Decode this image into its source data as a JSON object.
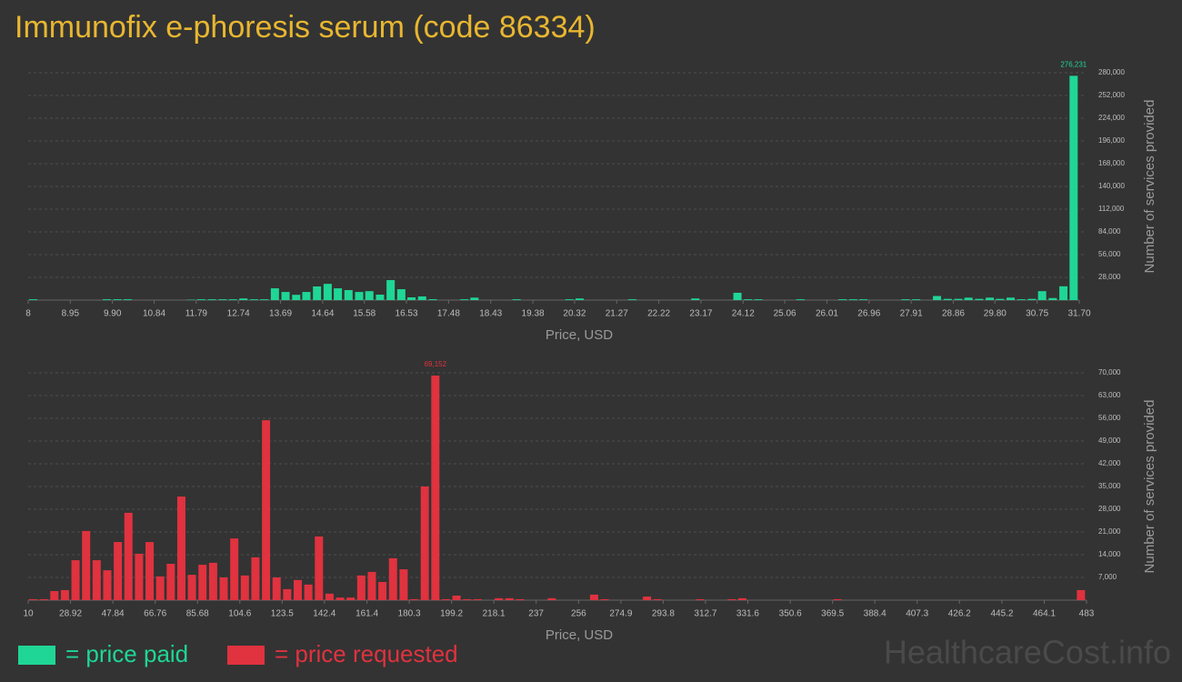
{
  "title": "Immunofix e-phoresis serum (code 86334)",
  "watermark": "HealthcareCost.info",
  "chart_data": [
    {
      "type": "bar",
      "x_label": "Price, USD",
      "y_label": "Number of services provided",
      "grid": true,
      "xlim": [
        8,
        31.7
      ],
      "xticks": [
        8,
        8.95,
        {
          "value": 9.9,
          "label": "9.90"
        },
        10.84,
        11.79,
        12.74,
        13.69,
        14.64,
        15.58,
        16.53,
        17.48,
        18.43,
        19.38,
        20.32,
        21.27,
        22.22,
        23.17,
        24.12,
        25.06,
        26.01,
        26.96,
        27.91,
        28.86,
        {
          "value": 29.8,
          "label": "29.80"
        },
        30.75,
        {
          "value": 31.7,
          "label": "31.70"
        }
      ],
      "ylim": [
        0,
        280000
      ],
      "yticks": [
        {
          "value": 28000,
          "label": "28,000"
        },
        {
          "value": 56000,
          "label": "56,000"
        },
        {
          "value": 84000,
          "label": "84,000"
        },
        {
          "value": 112000,
          "label": "112,000"
        },
        {
          "value": 140000,
          "label": "140,000"
        },
        {
          "value": 168000,
          "label": "168,000"
        },
        {
          "value": 196000,
          "label": "196,000"
        },
        {
          "value": 224000,
          "label": "224,000"
        },
        {
          "value": 252000,
          "label": "252,000"
        },
        {
          "value": 280000,
          "label": "280,000"
        }
      ],
      "series": [
        {
          "name": "= price paid",
          "color": "#1fd696",
          "x": [
            8.0,
            9.66,
            9.9,
            10.13,
            11.56,
            11.79,
            12.03,
            12.27,
            12.5,
            12.74,
            12.98,
            13.21,
            13.45,
            13.69,
            13.93,
            14.16,
            14.4,
            14.64,
            14.87,
            15.11,
            15.35,
            15.58,
            15.82,
            16.06,
            16.3,
            16.53,
            16.77,
            17.01,
            17.72,
            17.95,
            18.9,
            20.09,
            20.32,
            21.51,
            22.93,
            23.88,
            24.12,
            24.35,
            25.3,
            26.25,
            26.49,
            26.72,
            27.67,
            27.91,
            28.38,
            28.62,
            28.86,
            29.09,
            29.33,
            29.57,
            29.8,
            30.04,
            30.28,
            30.52,
            30.75,
            30.99,
            31.23,
            31.46
          ],
          "values": [
            1000,
            1000,
            1000,
            1000,
            500,
            1000,
            1000,
            1000,
            1000,
            2000,
            1000,
            1000,
            14500,
            10000,
            6500,
            10000,
            16800,
            20000,
            14500,
            12300,
            10000,
            11000,
            6700,
            24600,
            13400,
            3400,
            4500,
            1100,
            1000,
            3000,
            1000,
            1000,
            2000,
            1000,
            2000,
            9000,
            1000,
            1000,
            1000,
            1000,
            1000,
            1000,
            1000,
            1000,
            5000,
            1500,
            1500,
            3000,
            1500,
            3000,
            1500,
            3000,
            1000,
            1500,
            11000,
            2500,
            17000,
            276231
          ],
          "value_labels": [
            null,
            null,
            null,
            null,
            null,
            null,
            null,
            null,
            null,
            null,
            null,
            null,
            null,
            null,
            null,
            null,
            null,
            null,
            null,
            null,
            null,
            null,
            null,
            null,
            null,
            null,
            null,
            null,
            null,
            null,
            null,
            null,
            null,
            null,
            null,
            null,
            null,
            null,
            null,
            null,
            null,
            null,
            null,
            null,
            null,
            null,
            null,
            null,
            null,
            null,
            null,
            null,
            null,
            null,
            null,
            null,
            null,
            "276,231"
          ]
        }
      ]
    },
    {
      "type": "bar",
      "x_label": "Price, USD",
      "y_label": "Number of services provided",
      "grid": true,
      "xlim": [
        10,
        483
      ],
      "xticks": [
        10,
        28.92,
        47.84,
        66.76,
        85.68,
        104.6,
        123.5,
        142.4,
        161.4,
        180.3,
        199.2,
        218.1,
        237,
        256,
        274.9,
        293.8,
        312.7,
        331.6,
        350.6,
        369.5,
        388.4,
        407.3,
        426.2,
        445.2,
        464.1,
        483
      ],
      "ylim": [
        0,
        70000
      ],
      "yticks": [
        {
          "value": 7000,
          "label": "7,000"
        },
        {
          "value": 14000,
          "label": "14,000"
        },
        {
          "value": 21000,
          "label": "21,000"
        },
        {
          "value": 28000,
          "label": "28,000"
        },
        {
          "value": 35000,
          "label": "35,000"
        },
        {
          "value": 42000,
          "label": "42,000"
        },
        {
          "value": 49000,
          "label": "49,000"
        },
        {
          "value": 56000,
          "label": "56,000"
        },
        {
          "value": 63000,
          "label": "63,000"
        },
        {
          "value": 70000,
          "label": "70,000"
        }
      ],
      "series": [
        {
          "name": "= price requested",
          "color": "#e0323f",
          "x": [
            10.0,
            14.73,
            19.46,
            24.19,
            28.92,
            33.65,
            38.38,
            43.11,
            47.84,
            52.57,
            57.3,
            62.03,
            66.76,
            71.49,
            76.22,
            80.95,
            85.68,
            90.41,
            95.14,
            99.87,
            104.6,
            109.33,
            114.06,
            118.79,
            123.52,
            128.25,
            132.98,
            137.71,
            142.44,
            147.17,
            151.9,
            156.63,
            161.36,
            166.09,
            170.82,
            175.55,
            180.28,
            185.01,
            189.74,
            194.47,
            199.2,
            203.93,
            208.66,
            218.12,
            222.85,
            227.58,
            241.77,
            260.69,
            265.42,
            284.34,
            289.07,
            307.99,
            322.18,
            326.91,
            369.48,
            478.27
          ],
          "values": [
            300,
            300,
            2800,
            3100,
            12300,
            21300,
            12300,
            9200,
            17900,
            26900,
            14300,
            17900,
            7300,
            11200,
            31900,
            7800,
            10900,
            11500,
            7000,
            19000,
            7600,
            13200,
            55400,
            7000,
            3400,
            6200,
            4800,
            19600,
            2000,
            800,
            800,
            7600,
            8700,
            5600,
            12900,
            9500,
            300,
            35000,
            69152,
            300,
            1400,
            300,
            300,
            600,
            600,
            300,
            600,
            1700,
            300,
            1100,
            300,
            300,
            300,
            600,
            300,
            3100
          ],
          "value_labels": [
            null,
            null,
            null,
            null,
            null,
            null,
            null,
            null,
            null,
            null,
            null,
            null,
            null,
            null,
            null,
            null,
            null,
            null,
            null,
            null,
            null,
            null,
            null,
            null,
            null,
            null,
            null,
            null,
            null,
            null,
            null,
            null,
            null,
            null,
            null,
            null,
            null,
            null,
            "69,152",
            null,
            null,
            null,
            null,
            null,
            null,
            null,
            null,
            null,
            null,
            null,
            null,
            null,
            null,
            null,
            null,
            null
          ]
        }
      ]
    }
  ]
}
